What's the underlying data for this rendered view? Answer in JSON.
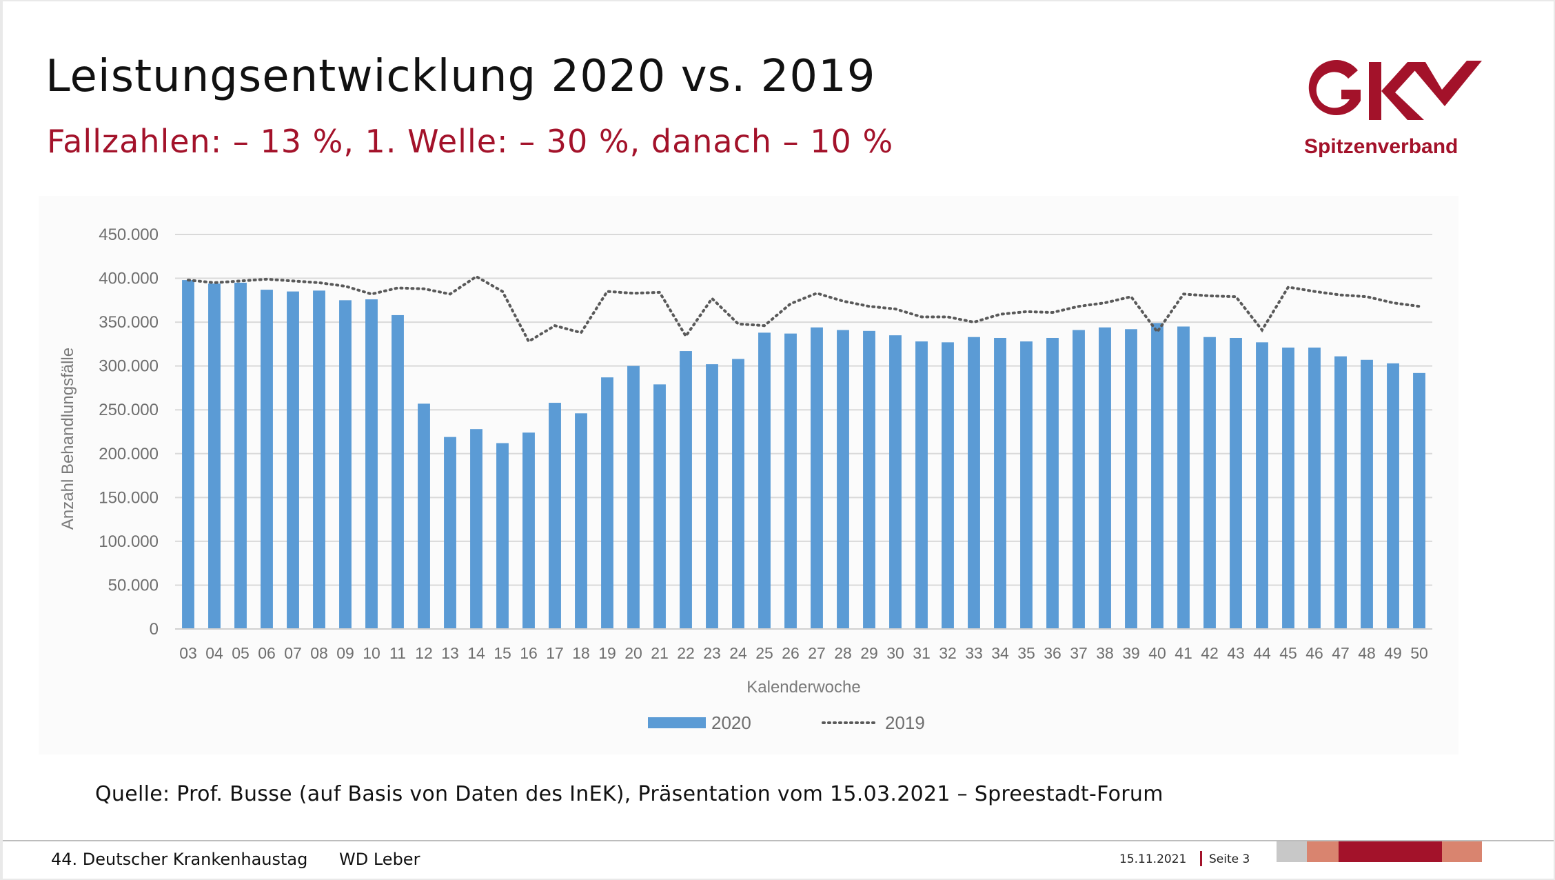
{
  "slide": {
    "title": "Leistungsentwicklung 2020 vs. 2019",
    "subtitle": "Fallzahlen: – 13 %, 1. Welle: – 30 %, danach – 10 %",
    "source": "Quelle: Prof. Busse (auf Basis von Daten des InEK), Präsentation vom 15.03.2021 – Spreestadt-Forum"
  },
  "logo": {
    "brand": "GKV",
    "text": "Spitzenverband",
    "color": "#a3122a"
  },
  "footer": {
    "event": "44. Deutscher Krankenhaustag",
    "author": "WD Leber",
    "date": "15.11.2021",
    "page": "Seite 3",
    "strip_colors": [
      "#c8c8c8",
      "#d9846f",
      "#a3122a",
      "#d9846f"
    ]
  },
  "chart_data": {
    "type": "bar",
    "title": "",
    "xlabel": "Kalenderwoche",
    "ylabel": "Anzahl Behandlungsfälle",
    "ylim": [
      0,
      450000
    ],
    "yticks": [
      0,
      50000,
      100000,
      150000,
      200000,
      250000,
      300000,
      350000,
      400000,
      450000
    ],
    "ytick_labels": [
      "0",
      "50.000",
      "100.000",
      "150.000",
      "200.000",
      "250.000",
      "300.000",
      "350.000",
      "400.000",
      "450.000"
    ],
    "grid": true,
    "legend_position": "bottom",
    "categories": [
      "03",
      "04",
      "05",
      "06",
      "07",
      "08",
      "09",
      "10",
      "11",
      "12",
      "13",
      "14",
      "15",
      "16",
      "17",
      "18",
      "19",
      "20",
      "21",
      "22",
      "23",
      "24",
      "25",
      "26",
      "27",
      "28",
      "29",
      "30",
      "31",
      "32",
      "33",
      "34",
      "35",
      "36",
      "37",
      "38",
      "39",
      "40",
      "41",
      "42",
      "43",
      "44",
      "45",
      "46",
      "47",
      "48",
      "49",
      "50"
    ],
    "series": [
      {
        "name": "2020",
        "kind": "bar",
        "color": "#5b9bd5",
        "values": [
          398000,
          394000,
          395000,
          387000,
          385000,
          386000,
          375000,
          376000,
          358000,
          257000,
          219000,
          228000,
          212000,
          224000,
          258000,
          246000,
          287000,
          300000,
          279000,
          317000,
          302000,
          308000,
          338000,
          337000,
          344000,
          341000,
          340000,
          335000,
          328000,
          327000,
          333000,
          332000,
          328000,
          332000,
          341000,
          344000,
          342000,
          349000,
          345000,
          333000,
          332000,
          327000,
          321000,
          321000,
          311000,
          307000,
          303000,
          292000
        ]
      },
      {
        "name": "2019",
        "kind": "line",
        "style": "dotted",
        "color": "#595959",
        "values": [
          398000,
          395000,
          397000,
          399000,
          397000,
          395000,
          391000,
          382000,
          389000,
          388000,
          382000,
          402000,
          385000,
          328000,
          346000,
          338000,
          385000,
          383000,
          384000,
          334000,
          377000,
          348000,
          346000,
          371000,
          383000,
          374000,
          368000,
          365000,
          356000,
          356000,
          350000,
          359000,
          362000,
          361000,
          368000,
          372000,
          379000,
          339000,
          382000,
          380000,
          379000,
          341000,
          390000,
          385000,
          381000,
          379000,
          372000,
          368000
        ]
      }
    ]
  }
}
